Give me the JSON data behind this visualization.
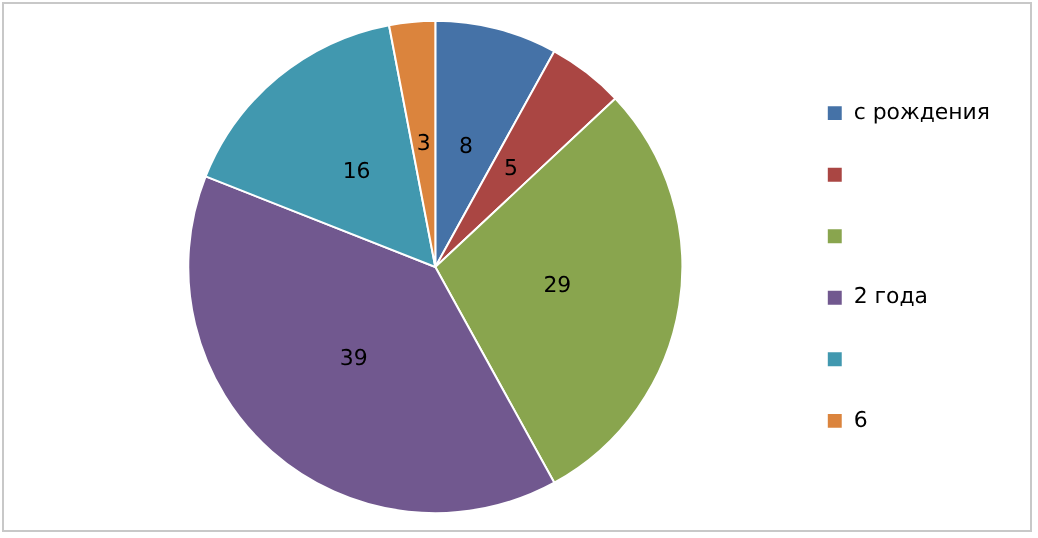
{
  "chart_data": {
    "type": "pie",
    "categories": [
      "с рождения",
      null,
      null,
      "2 года",
      null,
      "6"
    ],
    "values": [
      8,
      5,
      29,
      39,
      16,
      3
    ],
    "colors": [
      "#4572a7",
      "#aa4643",
      "#89a54e",
      "#71588f",
      "#4198af",
      "#db843d"
    ],
    "data_labels": true,
    "legend": "right"
  }
}
